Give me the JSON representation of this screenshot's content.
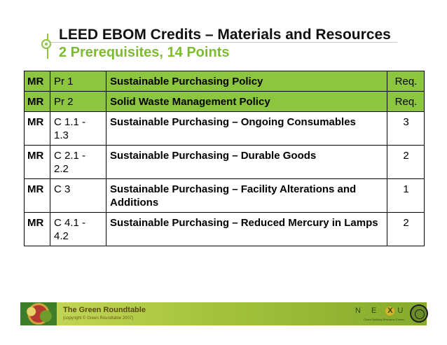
{
  "slide": {
    "title": "LEED EBOM Credits – Materials and Resources",
    "subtitle": "2 Prerequisites, 14 Points"
  },
  "table": {
    "rows": [
      {
        "category": "MR",
        "code": "Pr 1",
        "name": "Sustainable Purchasing Policy",
        "points": "Req.",
        "highlight": true
      },
      {
        "category": "MR",
        "code": "Pr 2",
        "name": "Solid Waste Management Policy",
        "points": "Req.",
        "highlight": true
      },
      {
        "category": "MR",
        "code": "C 1.1 - 1.3",
        "name": "Sustainable Purchasing – Ongoing Consumables",
        "points": "3",
        "highlight": false
      },
      {
        "category": "MR",
        "code": "C 2.1 - 2.2",
        "name": "Sustainable Purchasing – Durable Goods",
        "points": "2",
        "highlight": false
      },
      {
        "category": "MR",
        "code": "C 3",
        "name": "Sustainable Purchasing – Facility Alterations and Additions",
        "points": "1",
        "highlight": false
      },
      {
        "category": "MR",
        "code": "C 4.1 - 4.2",
        "name": "Sustainable Purchasing – Reduced Mercury in Lamps",
        "points": "2",
        "highlight": false
      }
    ]
  },
  "footer": {
    "org_name": "The Green Roundtable",
    "copyright": "(copyright © Green Roundtable 2007)",
    "nexus_logo_text": "NEXUS",
    "nexus_tagline": "Green Building Resource Center"
  },
  "colors": {
    "accent_green": "#8cc63f",
    "subtitle_green": "#7dbb2f"
  },
  "icons": {
    "title_bullet": "circle-bullet-icon",
    "footer_art": "roundtable-logo",
    "seal": "seal-emblem"
  }
}
